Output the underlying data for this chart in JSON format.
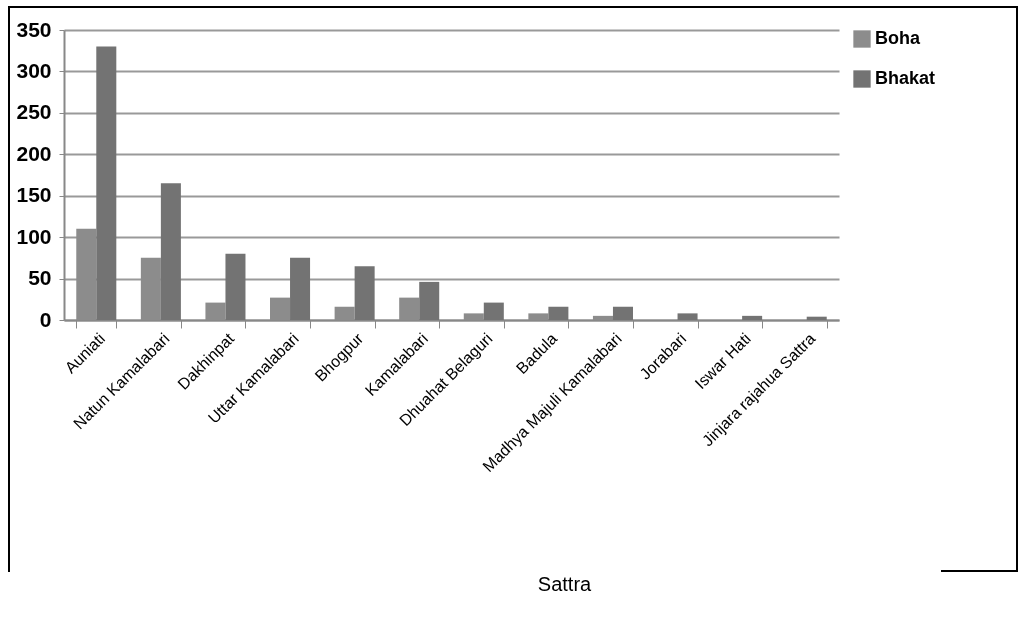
{
  "chart_data": {
    "type": "bar",
    "xlabel": "Sattra",
    "categories": [
      "Auniati",
      "Natun Kamalabari",
      "Dakhinpat",
      "Uttar Kamalabari",
      "Bhogpur",
      "Kamalabari",
      "Dhuahat Belaguri",
      "Badula",
      "Madhya Majuli Kamalabari",
      "Jorabari",
      "Iswar Hati",
      "Jinjara rajahua Sattra"
    ],
    "series": [
      {
        "name": "Boha",
        "color": "#8c8c8c",
        "values": [
          110,
          75,
          21,
          27,
          16,
          27,
          8,
          8,
          5,
          0,
          0,
          0
        ]
      },
      {
        "name": "Bhakat",
        "color": "#737373",
        "values": [
          330,
          165,
          80,
          75,
          65,
          46,
          21,
          16,
          16,
          8,
          5,
          4
        ]
      }
    ],
    "ylim": [
      0,
      350
    ],
    "yticks": [
      0,
      50,
      100,
      150,
      200,
      250,
      300,
      350
    ],
    "grid": "y",
    "legend": "right"
  }
}
